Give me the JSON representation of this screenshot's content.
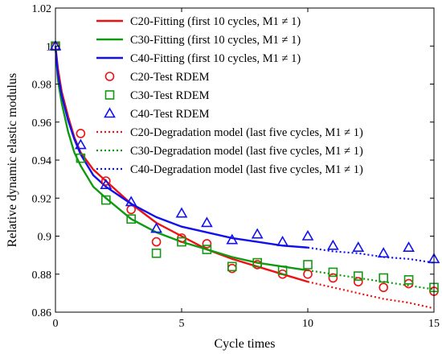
{
  "chart_data": {
    "type": "line",
    "xlabel": "Cycle times",
    "ylabel": "Relative dynamic elastic modulus",
    "xlim": [
      0,
      15
    ],
    "ylim": [
      0.86,
      1.02
    ],
    "x_ticks": [
      "0",
      "5",
      "10",
      "15"
    ],
    "y_ticks": [
      "0.86",
      "0.88",
      "0.9",
      "0.92",
      "0.94",
      "0.96",
      "0.98",
      "1",
      "1.02"
    ],
    "grid": false,
    "legend_position": "top-right",
    "series": [
      {
        "name": "C20-Fitting (first 10 cycles, M1 ≠ 1)",
        "kind": "line",
        "style": "solid",
        "color": "#ee1111",
        "x": [
          0,
          0.1,
          0.25,
          0.5,
          0.75,
          1,
          1.5,
          2,
          3,
          4,
          5,
          6,
          7,
          8,
          9,
          10
        ],
        "y": [
          1.0,
          0.988,
          0.976,
          0.963,
          0.952,
          0.944,
          0.935,
          0.929,
          0.917,
          0.907,
          0.9,
          0.893,
          0.888,
          0.884,
          0.88,
          0.876
        ]
      },
      {
        "name": "C30-Fitting (first 10 cycles, M1 ≠ 1)",
        "kind": "line",
        "style": "solid",
        "color": "#119911",
        "x": [
          0,
          0.1,
          0.25,
          0.5,
          0.75,
          1,
          1.5,
          2,
          3,
          4,
          5,
          6,
          7,
          8,
          9,
          10
        ],
        "y": [
          1.0,
          0.982,
          0.97,
          0.955,
          0.944,
          0.937,
          0.926,
          0.92,
          0.909,
          0.902,
          0.897,
          0.893,
          0.889,
          0.886,
          0.884,
          0.882
        ]
      },
      {
        "name": "C40-Fitting (first 10 cycles, M1 ≠ 1)",
        "kind": "line",
        "style": "solid",
        "color": "#1111ee",
        "x": [
          0,
          0.1,
          0.25,
          0.5,
          0.75,
          1,
          1.5,
          2,
          3,
          4,
          5,
          6,
          7,
          8,
          9,
          10
        ],
        "y": [
          1.0,
          0.985,
          0.974,
          0.961,
          0.951,
          0.943,
          0.932,
          0.926,
          0.917,
          0.91,
          0.905,
          0.902,
          0.899,
          0.897,
          0.895,
          0.894
        ]
      },
      {
        "name": "C20-Test RDEM",
        "kind": "marker",
        "marker": "circle",
        "color": "#ee1111",
        "x": [
          0,
          1,
          2,
          3,
          4,
          5,
          6,
          7,
          8,
          9,
          10,
          11,
          12,
          13,
          14,
          15
        ],
        "y": [
          1.0,
          0.954,
          0.929,
          0.914,
          0.897,
          0.899,
          0.896,
          0.883,
          0.885,
          0.88,
          0.88,
          0.878,
          0.876,
          0.873,
          0.875,
          0.871
        ]
      },
      {
        "name": "C30-Test RDEM",
        "kind": "marker",
        "marker": "square",
        "color": "#119911",
        "x": [
          0,
          1,
          2,
          3,
          4,
          5,
          6,
          7,
          8,
          9,
          10,
          11,
          12,
          13,
          14,
          15
        ],
        "y": [
          1.0,
          0.941,
          0.919,
          0.909,
          0.891,
          0.897,
          0.893,
          0.884,
          0.886,
          0.882,
          0.885,
          0.881,
          0.879,
          0.878,
          0.877,
          0.873
        ]
      },
      {
        "name": "C40-Test RDEM",
        "kind": "marker",
        "marker": "triangle",
        "color": "#1111ee",
        "x": [
          0,
          1,
          2,
          3,
          4,
          5,
          6,
          7,
          8,
          9,
          10,
          11,
          12,
          13,
          14,
          15
        ],
        "y": [
          1.0,
          0.948,
          0.927,
          0.918,
          0.904,
          0.912,
          0.907,
          0.898,
          0.901,
          0.897,
          0.9,
          0.895,
          0.894,
          0.891,
          0.894,
          0.888
        ]
      },
      {
        "name": "C20-Degradation model (last five cycles, M1 ≠ 1)",
        "kind": "line",
        "style": "dotted",
        "color": "#ee1111",
        "x": [
          10,
          11,
          12,
          13,
          14,
          15
        ],
        "y": [
          0.876,
          0.873,
          0.87,
          0.867,
          0.865,
          0.862
        ]
      },
      {
        "name": "C30-Degradation model (last five cycles, M1 ≠ 1)",
        "kind": "line",
        "style": "dotted",
        "color": "#119911",
        "x": [
          10,
          11,
          12,
          13,
          14,
          15
        ],
        "y": [
          0.882,
          0.88,
          0.878,
          0.876,
          0.874,
          0.872
        ]
      },
      {
        "name": "C40-Degradation model (last five cycles, M1 ≠ 1)",
        "kind": "line",
        "style": "dotted",
        "color": "#1111ee",
        "x": [
          10,
          11,
          12,
          13,
          14,
          15
        ],
        "y": [
          0.894,
          0.892,
          0.891,
          0.889,
          0.888,
          0.886
        ]
      }
    ]
  }
}
